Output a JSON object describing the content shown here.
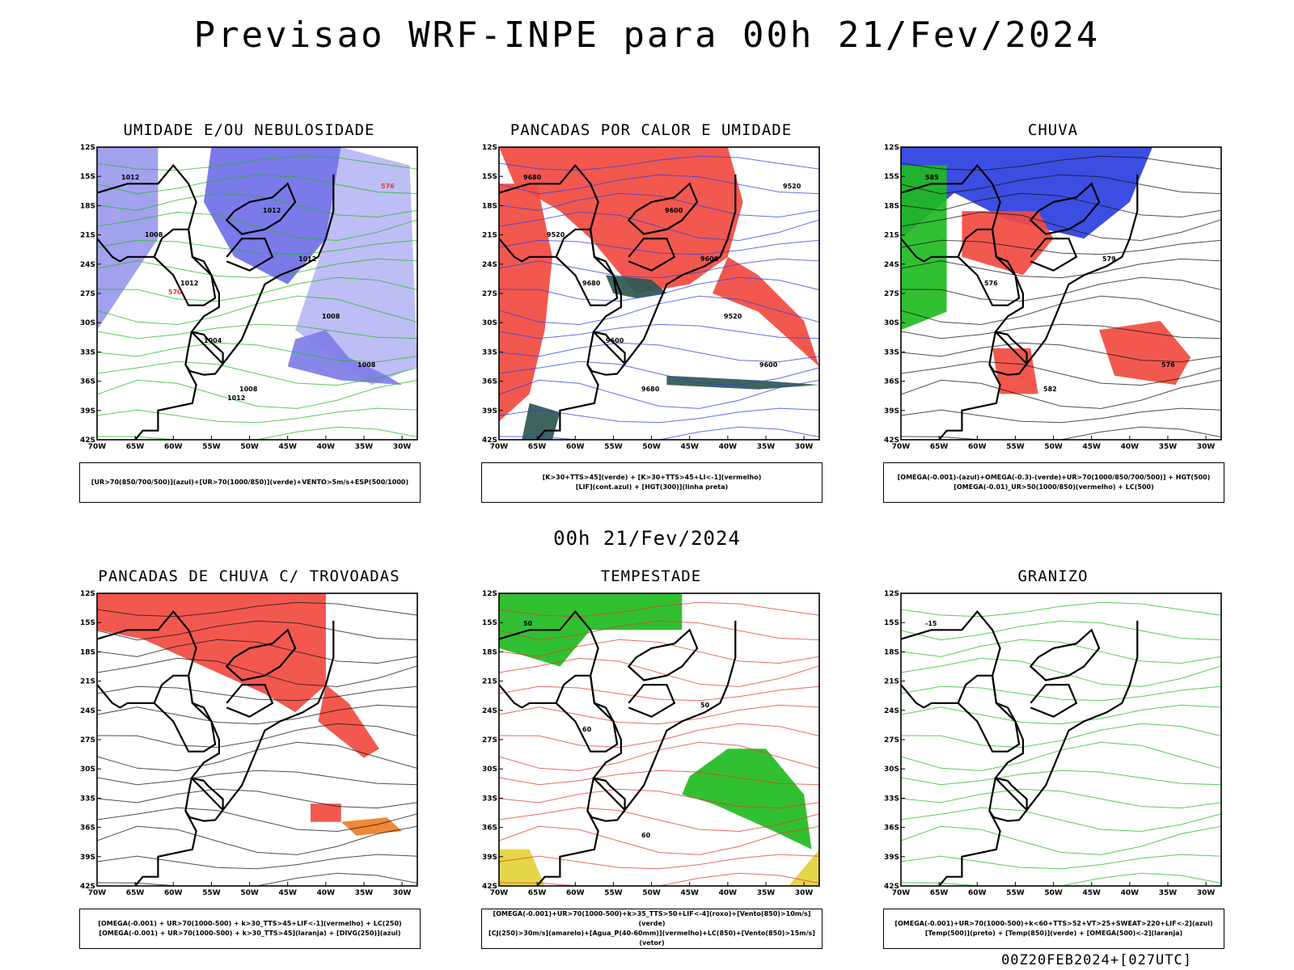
{
  "title": "Previsao WRF-INPE  para 00h 21/Fev/2024",
  "mid_timestamp": "00h 21/Fev/2024",
  "footer_stamp": "00Z20FEB2024+[027UTC]",
  "chart_data": [
    {
      "type": "map",
      "title": "UMIDADE E/OU NEBULOSIDADE",
      "lat_ticks": [
        "12S",
        "15S",
        "18S",
        "21S",
        "24S",
        "27S",
        "30S",
        "33S",
        "36S",
        "39S",
        "42S"
      ],
      "lon_ticks": [
        "70W",
        "65W",
        "60W",
        "55W",
        "50W",
        "45W",
        "40W",
        "35W",
        "30W"
      ],
      "contour_labels": [
        "1012",
        "1012",
        "1008",
        "1012",
        "1008",
        "1008",
        "1004",
        "1012",
        "1008",
        "576",
        "570",
        "1012"
      ],
      "legend": [
        "[UR>70(850/700/500)](azul)+[UR>70(1000/850)](verde)+VENTO>5m/s+ESP(500/1000)"
      ]
    },
    {
      "type": "map",
      "title": "PANCADAS POR CALOR E UMIDADE",
      "lat_ticks": [
        "12S",
        "15S",
        "18S",
        "21S",
        "24S",
        "27S",
        "30S",
        "33S",
        "36S",
        "39S",
        "42S"
      ],
      "lon_ticks": [
        "70W",
        "65W",
        "60W",
        "55W",
        "50W",
        "45W",
        "40W",
        "35W",
        "30W"
      ],
      "contour_labels": [
        "9680",
        "9680",
        "9680",
        "9600",
        "9600",
        "9520",
        "9600",
        "9600",
        "9520",
        "9520"
      ],
      "legend": [
        "[K>30+TTS>45](verde)  +  [K>30+TTS>45+LI<-1](vermelho)",
        "[LIF](cont.azul)  +  [HGT(300)](linha preta)"
      ]
    },
    {
      "type": "map",
      "title": "CHUVA",
      "lat_ticks": [
        "12S",
        "15S",
        "18S",
        "21S",
        "24S",
        "27S",
        "30S",
        "33S",
        "36S",
        "39S",
        "42S"
      ],
      "lon_ticks": [
        "70W",
        "65W",
        "60W",
        "55W",
        "50W",
        "45W",
        "40W",
        "35W",
        "30W"
      ],
      "contour_labels": [
        "585",
        "576",
        "582",
        "579",
        "576"
      ],
      "legend": [
        "[OMEGA(-0.001)-(azul)+OMEGA(-0.3)-(verde)+UR>70(1000/850/700/500)]  +  HGT(500)",
        "[OMEGA(-0.01)_UR>50(1000/850)(vermelho)  +  LC(500)"
      ]
    },
    {
      "type": "map",
      "title": "PANCADAS DE CHUVA C/ TROVOADAS",
      "lat_ticks": [
        "12S",
        "15S",
        "18S",
        "21S",
        "24S",
        "27S",
        "30S",
        "33S",
        "36S",
        "39S",
        "42S"
      ],
      "lon_ticks": [
        "70W",
        "65W",
        "60W",
        "55W",
        "50W",
        "45W",
        "40W",
        "35W",
        "30W"
      ],
      "contour_labels": [],
      "legend": [
        "[OMEGA(-0.001)  +  UR>70(1000-500)  +  k>30_TTS>45+LIF<-1](vermelho)  +  LC(250)",
        "[OMEGA(-0.001)  +  UR>70(1000-500)  +  k>30_TTS>45](laranja)  +  [DIVG(250)](azul)"
      ]
    },
    {
      "type": "map",
      "title": "TEMPESTADE",
      "lat_ticks": [
        "12S",
        "15S",
        "18S",
        "21S",
        "24S",
        "27S",
        "30S",
        "33S",
        "36S",
        "39S",
        "42S"
      ],
      "lon_ticks": [
        "70W",
        "65W",
        "60W",
        "55W",
        "50W",
        "45W",
        "40W",
        "35W",
        "30W"
      ],
      "contour_labels": [
        "50",
        "60",
        "60",
        "50"
      ],
      "legend": [
        "[OMEGA(-0.001)+UR>70(1000-500)+k>35_TTS>50+LIF<-4](roxo)+[Vento(850)>10m/s](verde)",
        "[CJ(250)>30m/s](amarelo)+[Agua_P(40-60mm)](vermelho)+LC(850)+[Vento(850)>15m/s](vetor)"
      ]
    },
    {
      "type": "map",
      "title": "GRANIZO",
      "lat_ticks": [
        "12S",
        "15S",
        "18S",
        "21S",
        "24S",
        "27S",
        "30S",
        "33S",
        "36S",
        "39S",
        "42S"
      ],
      "lon_ticks": [
        "70W",
        "65W",
        "60W",
        "55W",
        "50W",
        "45W",
        "40W",
        "35W",
        "30W"
      ],
      "contour_labels": [
        "-15"
      ],
      "legend": [
        "[OMEGA(-0.001)+UR>70(1000-500)+k<60+TTS>52+VT>25+SWEAT>220+LIF<-2](azul)",
        "[Temp(500)](preto)  +  [Temp(850)](verde)  +  [OMEGA(500)<-2](laranja)"
      ]
    }
  ]
}
